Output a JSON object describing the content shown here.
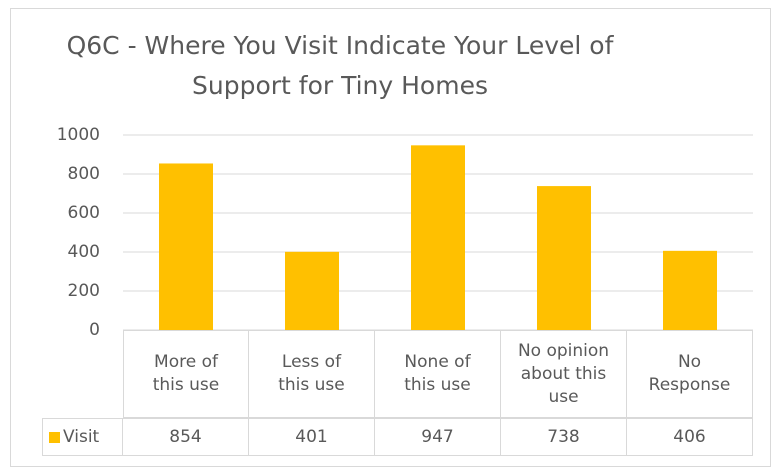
{
  "chart_data": {
    "type": "bar",
    "title": "Q6C - Where You Visit Indicate Your Level of Support for Tiny Homes",
    "categories": [
      "More of this use",
      "Less of this use",
      "None of this use",
      "No opinion about this use",
      "No Response"
    ],
    "series": [
      {
        "name": "Visit",
        "color": "#FFC000",
        "values": [
          854,
          401,
          947,
          738,
          406
        ]
      }
    ],
    "ylim": [
      0,
      1000
    ],
    "yticks": [
      0,
      200,
      400,
      600,
      800,
      1000
    ],
    "grid": true
  }
}
